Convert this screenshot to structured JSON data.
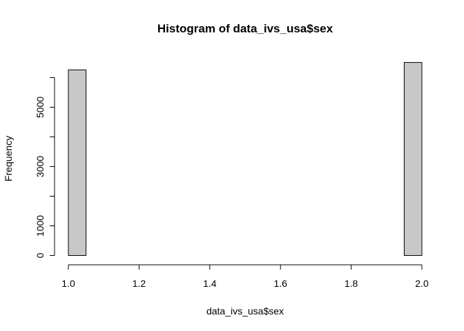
{
  "chart_data": {
    "type": "bar",
    "title": "Histogram of data_ivs_usa$sex",
    "xlabel": "data_ivs_usa$sex",
    "ylabel": "Frequency",
    "bin_width": 0.05,
    "xlim": [
      1.0,
      2.0
    ],
    "ylim": [
      0,
      6500
    ],
    "x_ticks": [
      "1.0",
      "1.2",
      "1.4",
      "1.6",
      "1.8",
      "2.0"
    ],
    "y_ticks": [
      "0",
      "1000",
      "3000",
      "5000"
    ],
    "bins": [
      {
        "start": 1.0,
        "end": 1.05,
        "count": 6260
      },
      {
        "start": 1.05,
        "end": 1.1,
        "count": 0
      },
      {
        "start": 1.1,
        "end": 1.15,
        "count": 0
      },
      {
        "start": 1.15,
        "end": 1.2,
        "count": 0
      },
      {
        "start": 1.2,
        "end": 1.25,
        "count": 0
      },
      {
        "start": 1.25,
        "end": 1.3,
        "count": 0
      },
      {
        "start": 1.3,
        "end": 1.35,
        "count": 0
      },
      {
        "start": 1.35,
        "end": 1.4,
        "count": 0
      },
      {
        "start": 1.4,
        "end": 1.45,
        "count": 0
      },
      {
        "start": 1.45,
        "end": 1.5,
        "count": 0
      },
      {
        "start": 1.5,
        "end": 1.55,
        "count": 0
      },
      {
        "start": 1.55,
        "end": 1.6,
        "count": 0
      },
      {
        "start": 1.6,
        "end": 1.65,
        "count": 0
      },
      {
        "start": 1.65,
        "end": 1.7,
        "count": 0
      },
      {
        "start": 1.7,
        "end": 1.75,
        "count": 0
      },
      {
        "start": 1.75,
        "end": 1.8,
        "count": 0
      },
      {
        "start": 1.8,
        "end": 1.85,
        "count": 0
      },
      {
        "start": 1.85,
        "end": 1.9,
        "count": 0
      },
      {
        "start": 1.9,
        "end": 1.95,
        "count": 0
      },
      {
        "start": 1.95,
        "end": 2.0,
        "count": 6510
      }
    ],
    "bar_fill": "#c8c8c8",
    "bar_stroke": "#000000",
    "grid": false,
    "legend": "none"
  }
}
